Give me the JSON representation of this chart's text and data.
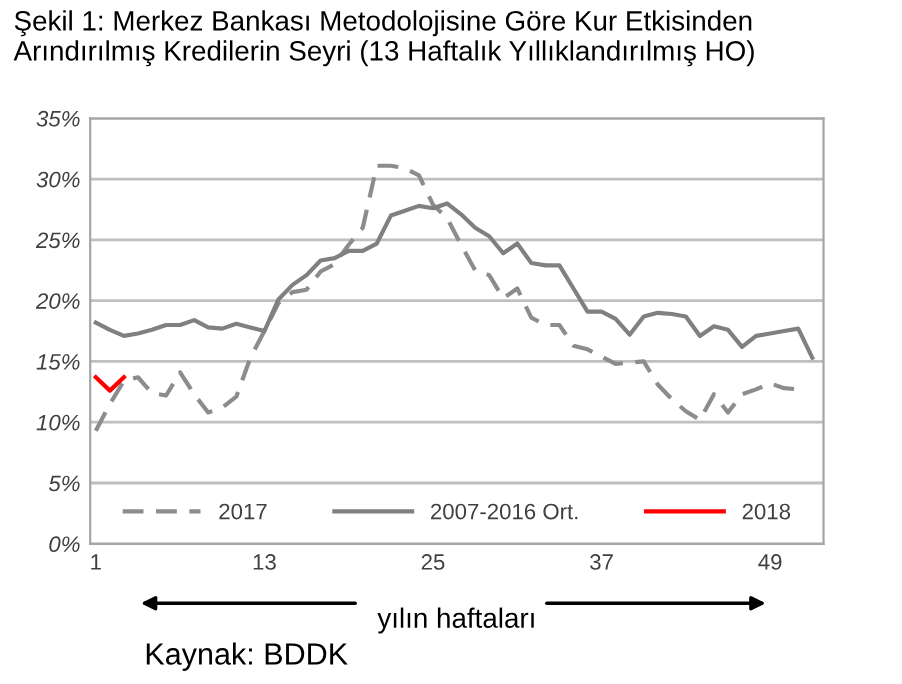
{
  "chart_data": {
    "type": "line",
    "title": "Şekil 1: Merkez Bankası Metodolojisine Göre Kur Etkisinden Arındırılmış Kredilerin Seyri (13 Haftalık Yıllıklandırılmış HO)",
    "xlabel": "yılın haftaları",
    "annotations": [
      "Kaynak: BDDK"
    ],
    "series": [
      {
        "name": "2017",
        "color": "#8c8c8c",
        "line_style": "dashed",
        "x": [
          1,
          2,
          3,
          4,
          5,
          6,
          7,
          8,
          9,
          10,
          11,
          12,
          13,
          14,
          15,
          16,
          17,
          18,
          19,
          20,
          21,
          22,
          23,
          24,
          25,
          26,
          27,
          28,
          29,
          30,
          31,
          32,
          33,
          34,
          35,
          36,
          37,
          38,
          39,
          40,
          41,
          42,
          43,
          44,
          45,
          46,
          47,
          48,
          49,
          50,
          51
        ],
        "values": [
          9.3,
          11.5,
          13.4,
          13.7,
          12.4,
          12.2,
          14.1,
          12.3,
          10.8,
          11.2,
          12.1,
          15.3,
          17.5,
          19.8,
          20.7,
          20.9,
          22.4,
          23.0,
          24.6,
          26.0,
          31.1,
          31.1,
          30.9,
          30.3,
          27.9,
          26.8,
          24.6,
          22.5,
          22.1,
          20.2,
          21.0,
          18.6,
          18.0,
          18.0,
          16.3,
          16.0,
          15.4,
          14.8,
          14.9,
          15.0,
          13.1,
          11.9,
          10.9,
          10.2,
          12.3,
          10.8,
          12.3,
          12.7,
          13.2,
          12.8,
          12.7
        ]
      },
      {
        "name": "2007-2016 Ort.",
        "color": "#808080",
        "line_style": "solid",
        "x": [
          1,
          2,
          3,
          4,
          5,
          6,
          7,
          8,
          9,
          10,
          11,
          12,
          13,
          14,
          15,
          16,
          17,
          18,
          19,
          20,
          21,
          22,
          23,
          24,
          25,
          26,
          27,
          28,
          29,
          30,
          31,
          32,
          33,
          34,
          35,
          36,
          37,
          38,
          39,
          40,
          41,
          42,
          43,
          44,
          45,
          46,
          47,
          48,
          49,
          50,
          51,
          52
        ],
        "values": [
          18.2,
          17.6,
          17.1,
          17.3,
          17.6,
          18.0,
          18.0,
          18.4,
          17.8,
          17.7,
          18.1,
          17.8,
          17.5,
          20.1,
          21.3,
          22.1,
          23.3,
          23.5,
          24.1,
          24.1,
          24.7,
          27.0,
          27.4,
          27.8,
          27.6,
          28.0,
          27.1,
          26.0,
          25.3,
          23.9,
          24.7,
          23.1,
          22.9,
          22.9,
          21.0,
          19.1,
          19.1,
          18.5,
          17.2,
          18.7,
          19.0,
          18.9,
          18.7,
          17.1,
          17.9,
          17.6,
          16.2,
          17.1,
          17.3,
          17.5,
          17.7,
          15.3
        ]
      },
      {
        "name": "2018",
        "color": "#ff0000",
        "line_style": "solid",
        "x": [
          1,
          2,
          3
        ],
        "values": [
          13.7,
          12.6,
          13.7
        ]
      }
    ],
    "xlim": [
      0.6,
      52.8
    ],
    "xticks": [
      1,
      13,
      25,
      37,
      49
    ],
    "ylim": [
      0,
      35
    ],
    "yticks": [
      {
        "value": 0,
        "label": "0%"
      },
      {
        "value": 5,
        "label": "5%"
      },
      {
        "value": 10,
        "label": "10%"
      },
      {
        "value": 15,
        "label": "15%"
      },
      {
        "value": 20,
        "label": "20%"
      },
      {
        "value": 25,
        "label": "25%"
      },
      {
        "value": 30,
        "label": "30%"
      },
      {
        "value": 35,
        "label": "35%"
      }
    ],
    "grid": "y",
    "legend": "bottom",
    "marker": "none"
  }
}
